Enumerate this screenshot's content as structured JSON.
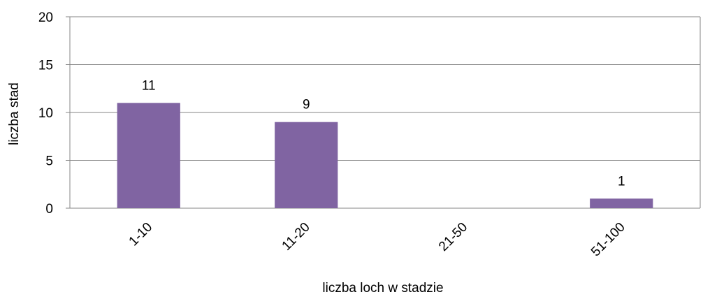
{
  "chart_data": {
    "type": "bar",
    "categories": [
      "1-10",
      "11-20",
      "21-50",
      "51-100"
    ],
    "values": [
      11,
      9,
      0,
      1
    ],
    "data_labels": [
      "11",
      "9",
      "",
      "1"
    ],
    "xlabel": "liczba loch w stadzie",
    "ylabel": "liczba stad",
    "ylim": [
      0,
      20
    ],
    "yticks": [
      "0",
      "5",
      "10",
      "15",
      "20"
    ],
    "grid": true,
    "legend": "none",
    "bar_color": "#8064A2",
    "grid_color": "#868686"
  }
}
